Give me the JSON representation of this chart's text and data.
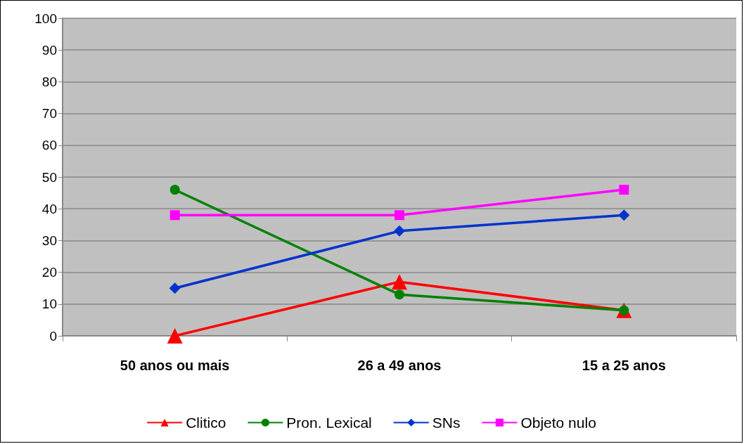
{
  "chart_data": {
    "type": "line",
    "categories": [
      "50 anos ou mais",
      "26 a 49 anos",
      "15 a 25 anos"
    ],
    "series": [
      {
        "name": "Clitico",
        "color": "#ff0000",
        "marker": "triangle",
        "values": [
          0,
          17,
          8
        ]
      },
      {
        "name": "Pron. Lexical",
        "color": "#008000",
        "marker": "circle",
        "values": [
          46,
          13,
          8
        ]
      },
      {
        "name": "SNs",
        "color": "#0033cc",
        "marker": "diamond",
        "values": [
          15,
          33,
          38
        ]
      },
      {
        "name": "Objeto nulo",
        "color": "#ff00ff",
        "marker": "square",
        "values": [
          38,
          38,
          46
        ]
      }
    ],
    "ylim": [
      0,
      100
    ],
    "yticks": [
      0,
      10,
      20,
      30,
      40,
      50,
      60,
      70,
      80,
      90,
      100
    ],
    "grid": "y",
    "legend": "bottom",
    "line_style": "solid"
  }
}
